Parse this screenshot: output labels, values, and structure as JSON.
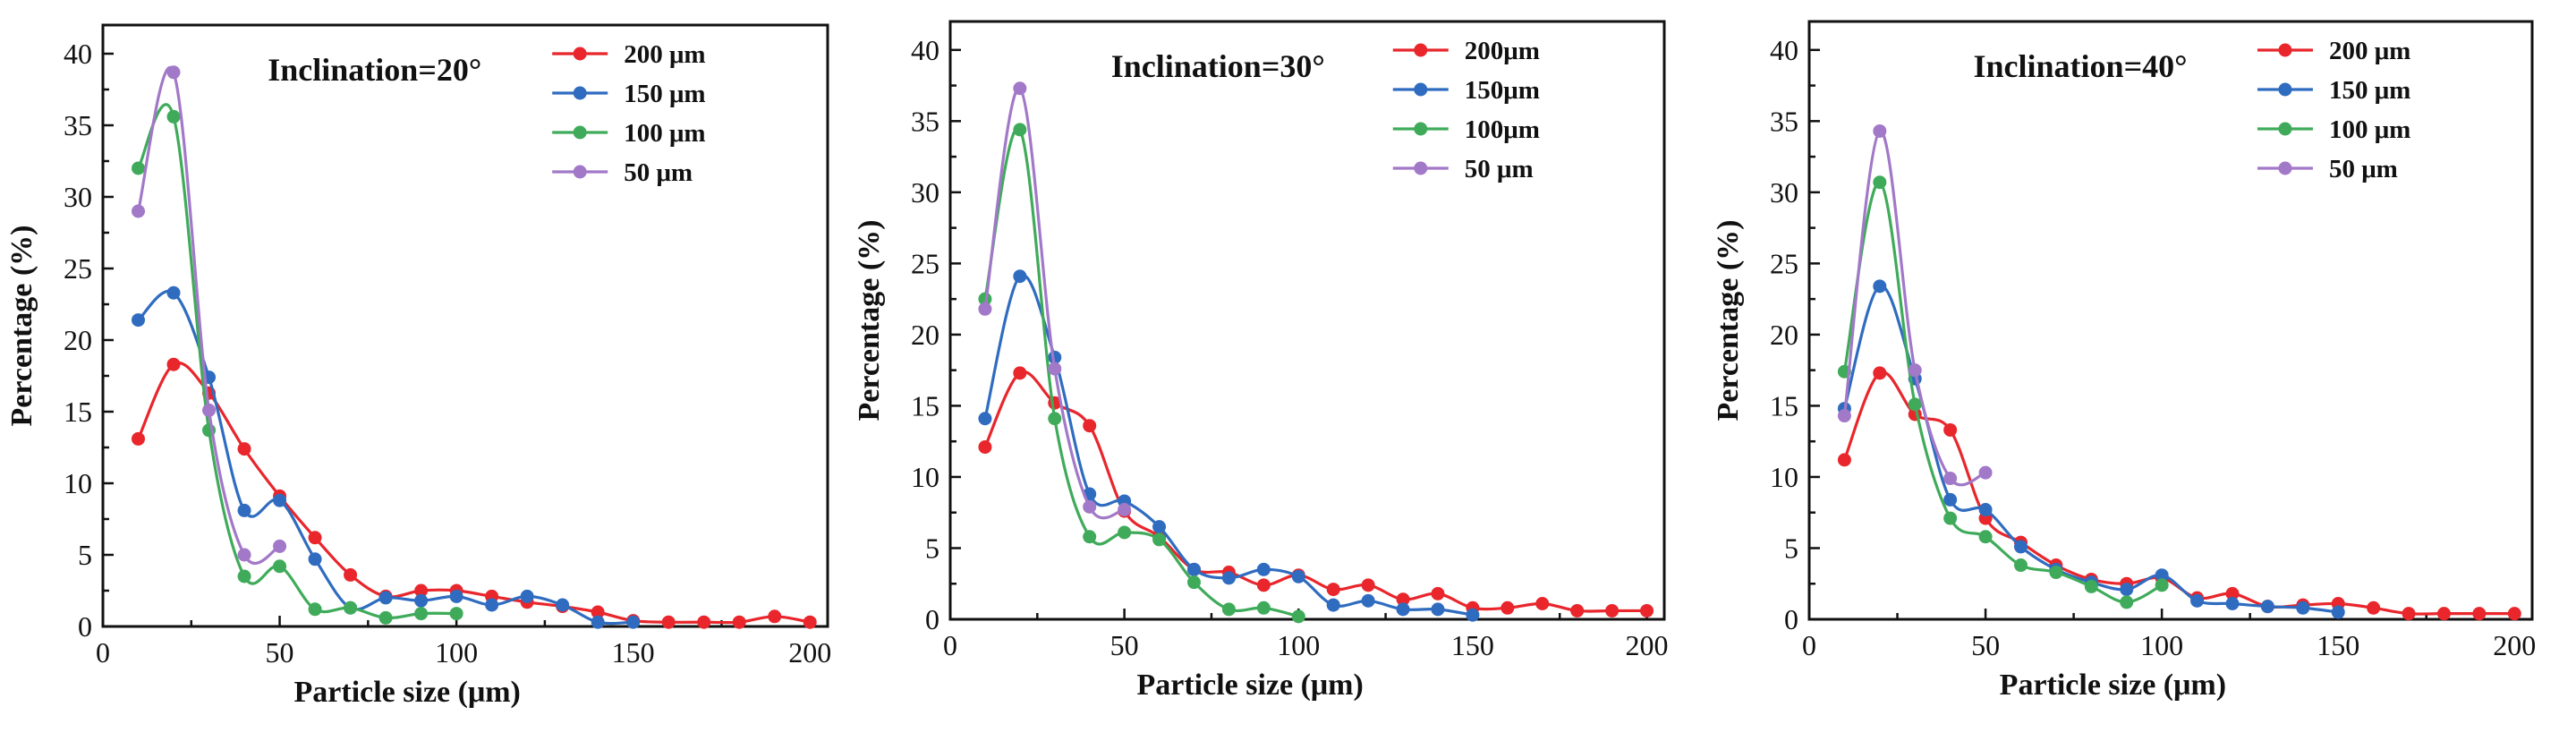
{
  "chart_data": [
    {
      "type": "line",
      "title": "Inclination=20°",
      "xlabel": "Particle size (μm)",
      "ylabel": "Percentage (%)",
      "xlim": [
        0,
        205
      ],
      "ylim": [
        0,
        42
      ],
      "xticks": [
        "0",
        "50",
        "100",
        "150",
        "200"
      ],
      "yticks": [
        "0",
        "5",
        "10",
        "15",
        "20",
        "25",
        "30",
        "35",
        "40"
      ],
      "grid": false,
      "legend_position": "top-right",
      "series": [
        {
          "name": "200 μm",
          "color": "#e8262c",
          "x": [
            10,
            20,
            30,
            40,
            50,
            60,
            70,
            80,
            90,
            100,
            110,
            120,
            130,
            140,
            150,
            160,
            170,
            180,
            190,
            200
          ],
          "y": [
            13.1,
            18.3,
            16.3,
            12.4,
            9.1,
            6.2,
            3.6,
            2.1,
            2.5,
            2.5,
            2.1,
            1.7,
            1.4,
            1.0,
            0.4,
            0.3,
            0.3,
            0.3,
            0.7,
            0.3
          ]
        },
        {
          "name": "150 μm",
          "color": "#2f6cc0",
          "x": [
            10,
            20,
            30,
            40,
            50,
            60,
            70,
            80,
            90,
            100,
            110,
            120,
            130,
            140,
            150
          ],
          "y": [
            21.4,
            23.3,
            17.4,
            8.1,
            8.8,
            4.7,
            1.3,
            2.0,
            1.8,
            2.1,
            1.5,
            2.1,
            1.5,
            0.3,
            0.3
          ]
        },
        {
          "name": "100 μm",
          "color": "#3fab5a",
          "x": [
            10,
            20,
            30,
            40,
            50,
            60,
            70,
            80,
            90,
            100
          ],
          "y": [
            32.0,
            35.6,
            13.7,
            3.5,
            4.2,
            1.2,
            1.3,
            0.6,
            0.9,
            0.9
          ]
        },
        {
          "name": "50  μm",
          "color": "#a278c8",
          "x": [
            10,
            20,
            30,
            40,
            50
          ],
          "y": [
            29.0,
            38.7,
            15.1,
            5.0,
            5.6
          ]
        }
      ]
    },
    {
      "type": "line",
      "title": "Inclination=30°",
      "xlabel": "Particle size (μm)",
      "ylabel": "Percentage (%)",
      "xlim": [
        0,
        205
      ],
      "ylim": [
        0,
        42
      ],
      "xticks": [
        "0",
        "50",
        "100",
        "150",
        "200"
      ],
      "yticks": [
        "0",
        "5",
        "10",
        "15",
        "20",
        "25",
        "30",
        "35",
        "40"
      ],
      "grid": false,
      "legend_position": "top-right",
      "series": [
        {
          "name": "200μm",
          "color": "#e8262c",
          "x": [
            10,
            20,
            30,
            40,
            50,
            60,
            70,
            80,
            90,
            100,
            110,
            120,
            130,
            140,
            150,
            160,
            170,
            180,
            190,
            200
          ],
          "y": [
            12.1,
            17.3,
            15.2,
            13.6,
            7.6,
            5.8,
            3.5,
            3.3,
            2.4,
            3.1,
            2.1,
            2.4,
            1.4,
            1.8,
            0.8,
            0.8,
            1.1,
            0.6,
            0.6,
            0.6
          ]
        },
        {
          "name": "150μm",
          "color": "#2f6cc0",
          "x": [
            10,
            20,
            30,
            40,
            50,
            60,
            70,
            80,
            90,
            100,
            110,
            120,
            130,
            140,
            150
          ],
          "y": [
            14.1,
            24.1,
            18.4,
            8.8,
            8.3,
            6.5,
            3.5,
            2.9,
            3.5,
            3.0,
            1.0,
            1.3,
            0.7,
            0.7,
            0.3
          ]
        },
        {
          "name": "100μm",
          "color": "#3fab5a",
          "x": [
            10,
            20,
            30,
            40,
            50,
            60,
            70,
            80,
            90,
            100
          ],
          "y": [
            22.5,
            34.4,
            14.1,
            5.8,
            6.1,
            5.6,
            2.6,
            0.7,
            0.8,
            0.2
          ]
        },
        {
          "name": "50 μm",
          "color": "#a278c8",
          "x": [
            10,
            20,
            30,
            40,
            50
          ],
          "y": [
            21.8,
            37.3,
            17.6,
            7.9,
            7.7
          ]
        }
      ]
    },
    {
      "type": "line",
      "title": "Inclination=40°",
      "xlabel": "Particle size (μm)",
      "ylabel": "Percentage (%)",
      "xlim": [
        0,
        205
      ],
      "ylim": [
        0,
        42
      ],
      "xticks": [
        "0",
        "50",
        "100",
        "150",
        "200"
      ],
      "yticks": [
        "0",
        "5",
        "10",
        "15",
        "20",
        "25",
        "30",
        "35",
        "40"
      ],
      "grid": false,
      "legend_position": "top-right",
      "series": [
        {
          "name": "200 μm",
          "color": "#e8262c",
          "x": [
            10,
            20,
            30,
            40,
            50,
            60,
            70,
            80,
            90,
            100,
            110,
            120,
            130,
            140,
            150,
            160,
            170,
            180,
            190,
            200
          ],
          "y": [
            11.2,
            17.3,
            14.4,
            13.3,
            7.1,
            5.4,
            3.8,
            2.8,
            2.5,
            2.9,
            1.5,
            1.8,
            0.9,
            1.0,
            1.1,
            0.8,
            0.4,
            0.4,
            0.4,
            0.4
          ]
        },
        {
          "name": "150 μm",
          "color": "#2f6cc0",
          "x": [
            10,
            20,
            30,
            40,
            50,
            60,
            70,
            80,
            90,
            100,
            110,
            120,
            130,
            140,
            150
          ],
          "y": [
            14.8,
            23.4,
            16.9,
            8.4,
            7.7,
            5.1,
            3.5,
            2.6,
            2.1,
            3.1,
            1.3,
            1.1,
            0.9,
            0.8,
            0.5
          ]
        },
        {
          "name": "100 μm",
          "color": "#3fab5a",
          "x": [
            10,
            20,
            30,
            40,
            50,
            60,
            70,
            80,
            90,
            100
          ],
          "y": [
            17.4,
            30.7,
            15.1,
            7.1,
            5.8,
            3.8,
            3.3,
            2.3,
            1.2,
            2.4
          ]
        },
        {
          "name": "50  μm",
          "color": "#a278c8",
          "x": [
            10,
            20,
            30,
            40,
            50
          ],
          "y": [
            14.3,
            34.3,
            17.5,
            9.9,
            10.3
          ]
        }
      ]
    }
  ]
}
